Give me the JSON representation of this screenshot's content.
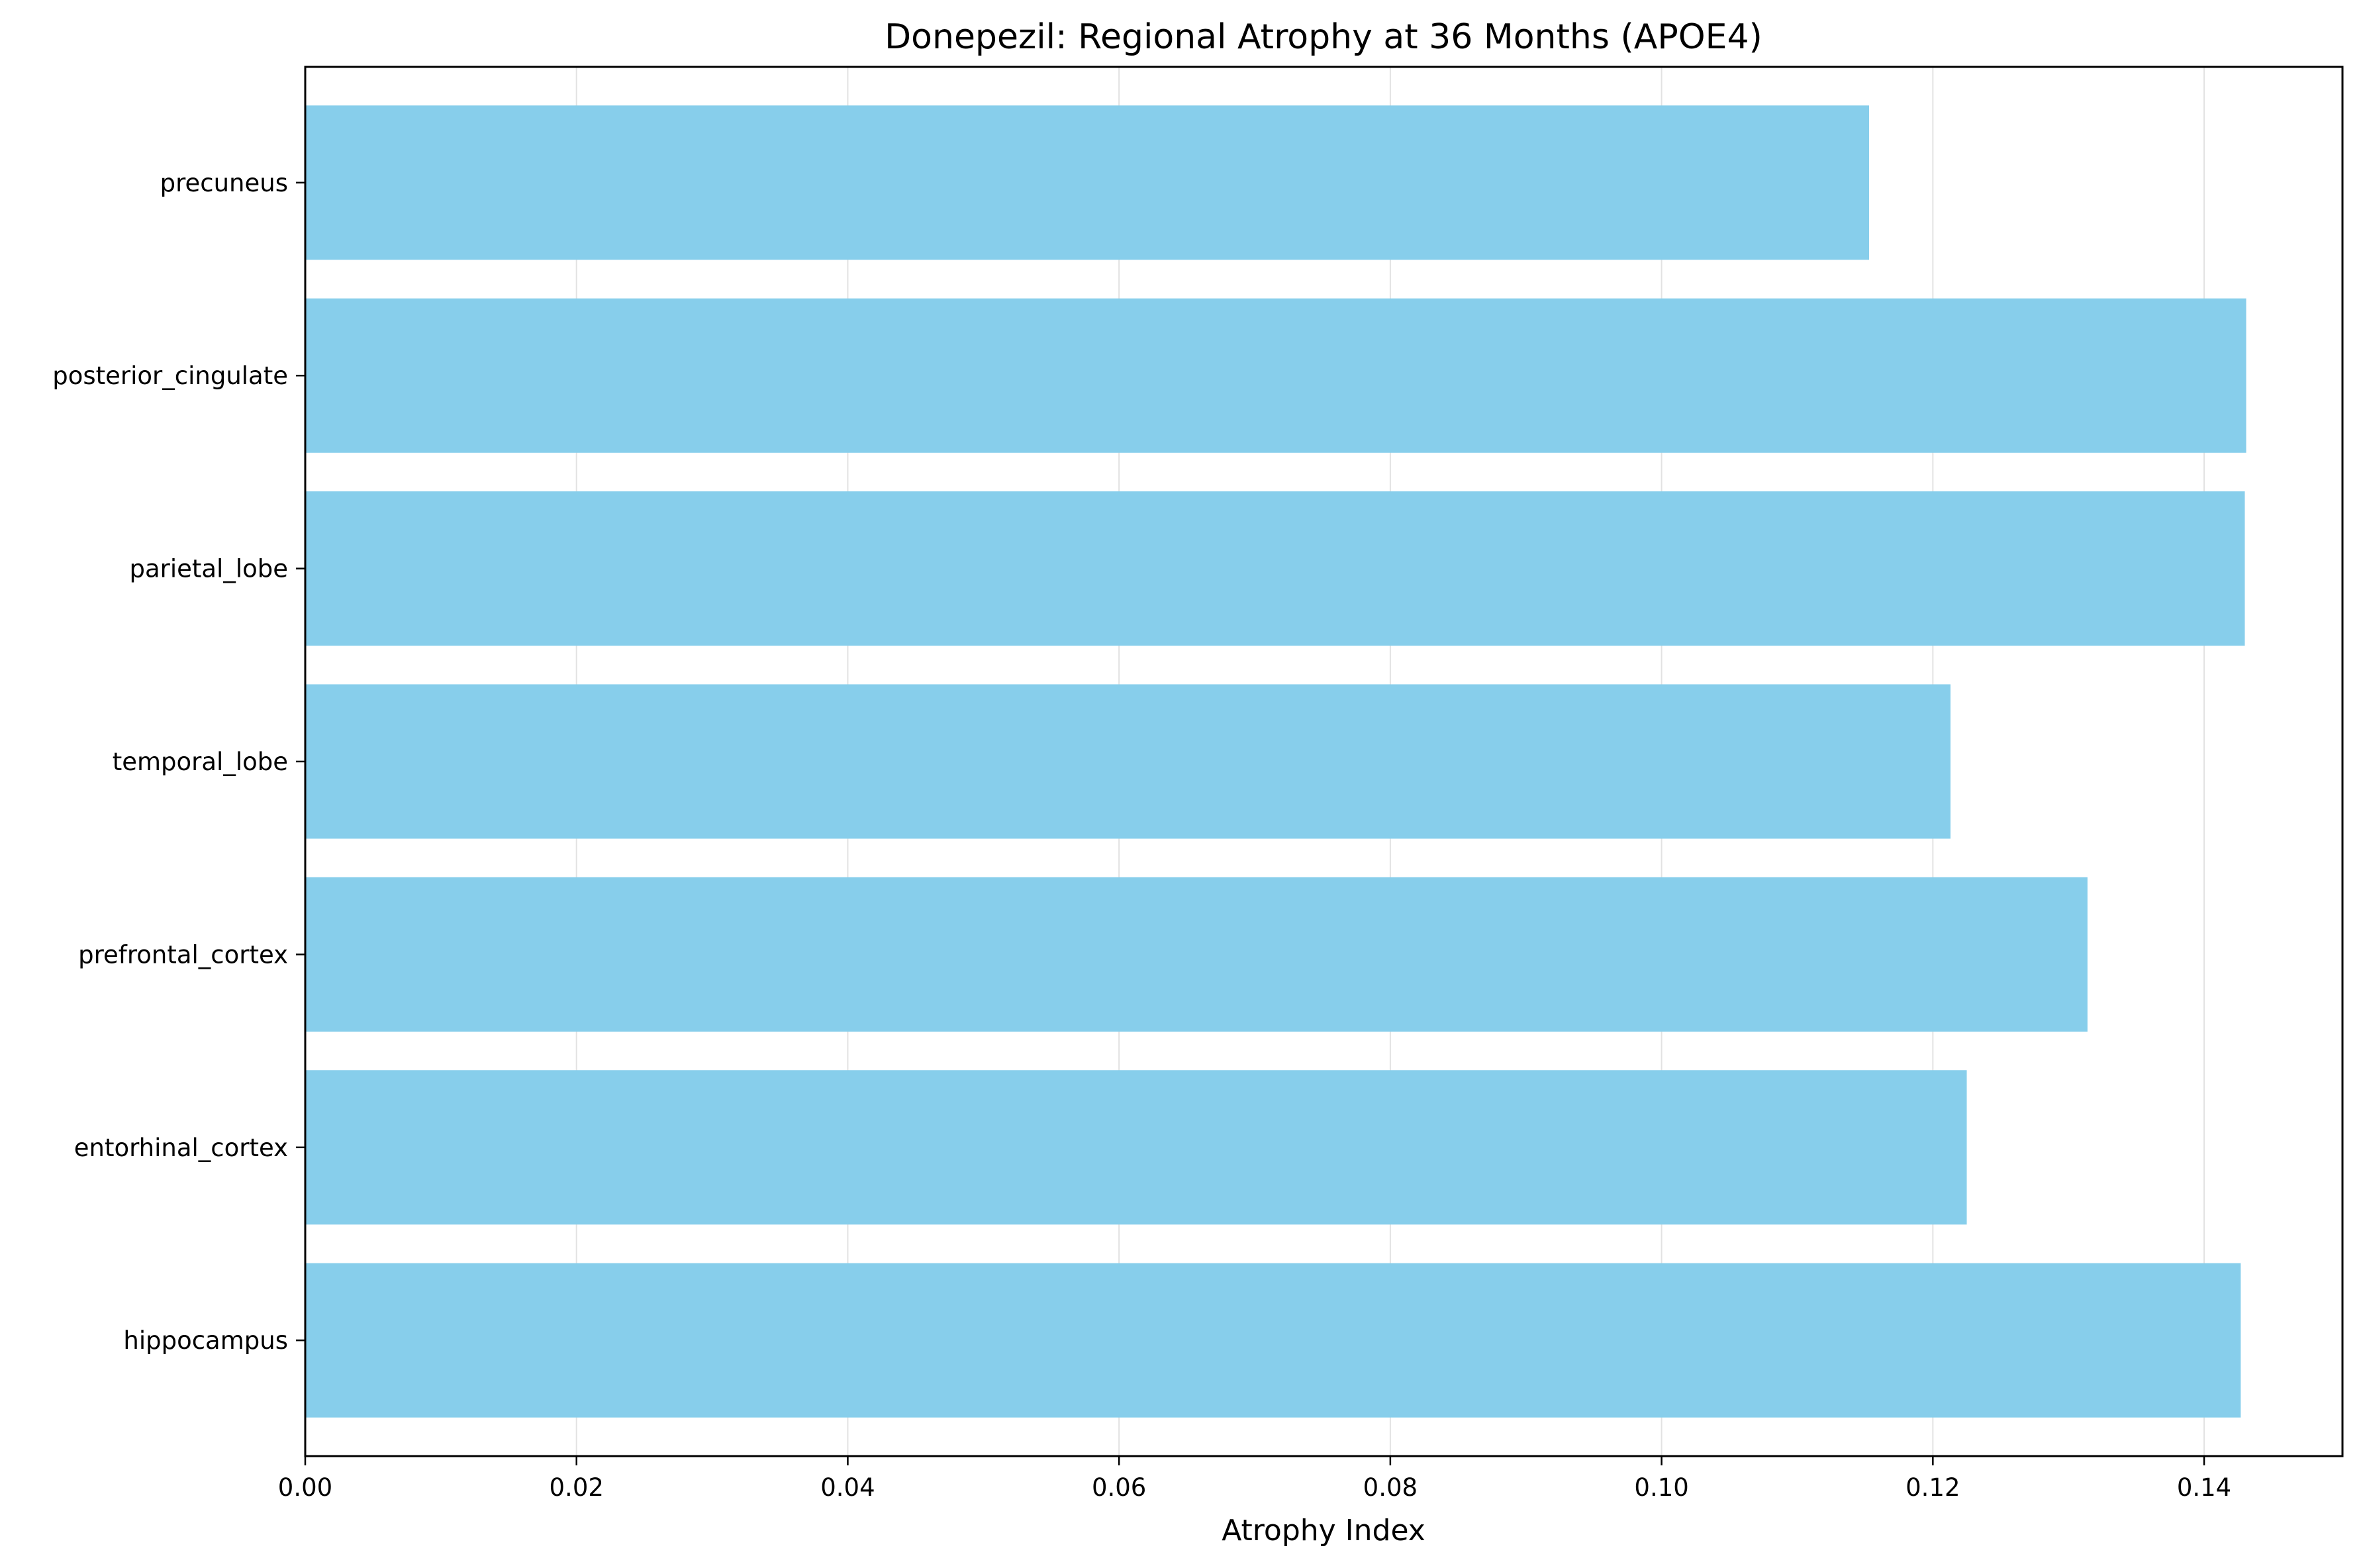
{
  "chart_data": {
    "type": "bar",
    "orientation": "horizontal",
    "title": "Donepezil: Regional Atrophy at 36 Months (APOE4)",
    "xlabel": "Atrophy Index",
    "ylabel": "",
    "xlim": [
      0,
      0.1502
    ],
    "x_ticks": [
      "0.00",
      "0.02",
      "0.04",
      "0.06",
      "0.08",
      "0.10",
      "0.12",
      "0.14"
    ],
    "grid": "vertical",
    "bar_color": "#87CEEB",
    "categories": [
      "hippocampus",
      "entorhinal_cortex",
      "prefrontal_cortex",
      "temporal_lobe",
      "parietal_lobe",
      "posterior_cingulate",
      "precuneus"
    ],
    "values": [
      0.1427,
      0.1225,
      0.1314,
      0.1213,
      0.143,
      0.1431,
      0.1153
    ]
  }
}
